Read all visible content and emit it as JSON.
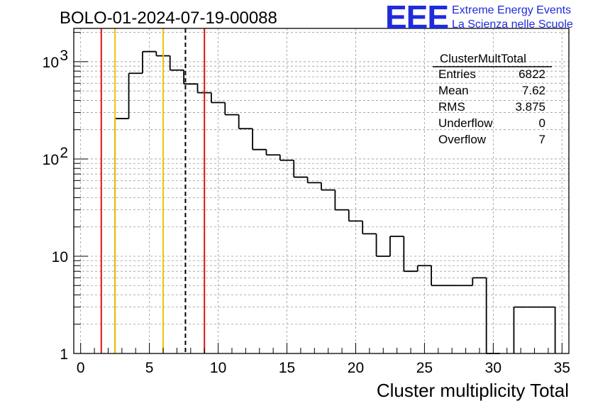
{
  "header": {
    "title": "BOLO-01-2024-07-19-00088",
    "logo": "EEE",
    "logo_line1": "Extreme Energy Events",
    "logo_line2": "La Scienza nelle Scuole",
    "logo_color": "#1f2bdc"
  },
  "stats": {
    "name": "ClusterMultTotal",
    "rows": [
      {
        "label": "Entries",
        "value": "6822"
      },
      {
        "label": "Mean",
        "value": "7.62"
      },
      {
        "label": "RMS",
        "value": "3.875"
      },
      {
        "label": "Underflow",
        "value": "0"
      },
      {
        "label": "Overflow",
        "value": "7"
      }
    ]
  },
  "chart_data": {
    "type": "histogram",
    "xlabel": "Cluster multiplicity Total",
    "ylabel": "",
    "xlim": [
      -0.5,
      35.5
    ],
    "ylim": [
      1,
      2200
    ],
    "yscale": "log",
    "grid": true,
    "x_ticks": [
      0,
      5,
      10,
      15,
      20,
      25,
      30,
      35
    ],
    "y_ticks": [
      {
        "value": 1,
        "label": "1"
      },
      {
        "value": 10,
        "label": "10"
      },
      {
        "value": 100,
        "label": "10",
        "exp": "2"
      },
      {
        "value": 1000,
        "label": "10",
        "exp": "3"
      }
    ],
    "bins": {
      "edges": [
        -0.5,
        0.5,
        1.5,
        2.5,
        3.5,
        4.5,
        5.5,
        6.5,
        7.5,
        8.5,
        9.5,
        10.5,
        11.5,
        12.5,
        13.5,
        14.5,
        15.5,
        16.5,
        17.5,
        18.5,
        19.5,
        20.5,
        21.5,
        22.5,
        23.5,
        24.5,
        25.5,
        26.5,
        27.5,
        28.5,
        29.5,
        30.5,
        31.5,
        32.5,
        33.5,
        34.5
      ],
      "counts": [
        0,
        0,
        0,
        260,
        760,
        1270,
        1150,
        820,
        590,
        480,
        380,
        285,
        205,
        125,
        110,
        97,
        65,
        57,
        48,
        30,
        23,
        17,
        10,
        16,
        7,
        8,
        5,
        5,
        5,
        6,
        1,
        0,
        3,
        3,
        3
      ],
      "color": "#000000"
    },
    "vertical_lines": [
      {
        "x": 1.5,
        "color": "#dd1111",
        "dash": false
      },
      {
        "x": 2.5,
        "color": "#f2c200",
        "dash": false
      },
      {
        "x": 6.0,
        "color": "#f2c200",
        "dash": false
      },
      {
        "x": 7.62,
        "color": "#000000",
        "dash": true
      },
      {
        "x": 9.0,
        "color": "#dd1111",
        "dash": false
      }
    ]
  }
}
